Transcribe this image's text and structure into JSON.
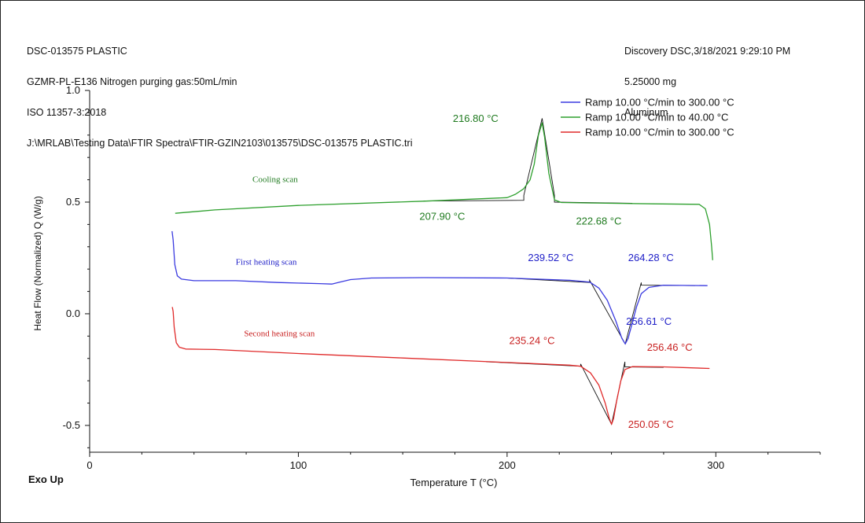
{
  "header": {
    "left_lines": [
      "DSC-013575 PLASTIC",
      "GZMR-PL-E136 Nitrogen purging gas:50mL/min",
      "ISO 11357-3:2018",
      "J:\\MRLAB\\Testing Data\\FTIR Spectra\\FTIR-GZIN2103\\013575\\DSC-013575 PLASTIC.tri"
    ],
    "right_lines": [
      "Discovery DSC,3/18/2021 9:29:10 PM",
      "5.25000 mg",
      "Aluminum"
    ]
  },
  "footer": {
    "exo_label": "Exo Up"
  },
  "chart_data": {
    "type": "line",
    "xlabel": "Temperature  T  (°C)",
    "ylabel": "Heat Flow (Normalized)  Q  (W/g)",
    "xlim": [
      0,
      350
    ],
    "ylim": [
      -0.62,
      1.0
    ],
    "x_ticks": [
      0,
      100,
      200,
      300
    ],
    "x_tick_labels": [
      "0",
      "100",
      "200",
      "300"
    ],
    "y_ticks": [
      1.0,
      0.5,
      0.0,
      -0.5
    ],
    "y_tick_labels": [
      "1.0",
      "0.5",
      "0.0",
      "-0.5"
    ],
    "grid": false,
    "legend_position": "top-right",
    "series": [
      {
        "name": "Ramp 10.00 °C/min to 300.00 °C",
        "role": "first-heating",
        "color": "#3a3ae0",
        "points": [
          [
            39.5,
            0.37
          ],
          [
            40,
            0.33
          ],
          [
            40.8,
            0.22
          ],
          [
            42,
            0.17
          ],
          [
            44,
            0.155
          ],
          [
            50,
            0.148
          ],
          [
            70,
            0.148
          ],
          [
            90,
            0.14
          ],
          [
            110,
            0.135
          ],
          [
            116,
            0.133
          ],
          [
            120,
            0.142
          ],
          [
            125,
            0.153
          ],
          [
            135,
            0.16
          ],
          [
            160,
            0.162
          ],
          [
            200,
            0.16
          ],
          [
            230,
            0.15
          ],
          [
            239.52,
            0.142
          ],
          [
            244,
            0.115
          ],
          [
            248,
            0.06
          ],
          [
            252,
            -0.03
          ],
          [
            255,
            -0.11
          ],
          [
            256.61,
            -0.135
          ],
          [
            258,
            -0.11
          ],
          [
            260,
            -0.04
          ],
          [
            262,
            0.03
          ],
          [
            264.28,
            0.09
          ],
          [
            268,
            0.118
          ],
          [
            275,
            0.128
          ],
          [
            296,
            0.126
          ]
        ]
      },
      {
        "name": "Ramp 10.00 °C/min to 40.00 °C",
        "role": "cooling",
        "color": "#2ea02e",
        "points": [
          [
            298.5,
            0.24
          ],
          [
            298,
            0.3
          ],
          [
            297,
            0.4
          ],
          [
            295,
            0.47
          ],
          [
            292,
            0.49
          ],
          [
            270,
            0.492
          ],
          [
            240,
            0.496
          ],
          [
            226,
            0.498
          ],
          [
            222.68,
            0.51
          ],
          [
            220,
            0.63
          ],
          [
            218,
            0.79
          ],
          [
            216.8,
            0.855
          ],
          [
            215,
            0.8
          ],
          [
            213,
            0.67
          ],
          [
            211,
            0.6
          ],
          [
            208,
            0.56
          ],
          [
            204,
            0.535
          ],
          [
            200,
            0.52
          ],
          [
            160,
            0.504
          ],
          [
            100,
            0.485
          ],
          [
            60,
            0.465
          ],
          [
            41,
            0.45
          ]
        ]
      },
      {
        "name": "Ramp 10.00 °C/min to 300.00 °C",
        "role": "second-heating",
        "color": "#e02a2a",
        "points": [
          [
            39.6,
            0.03
          ],
          [
            40,
            0.01
          ],
          [
            40.5,
            -0.06
          ],
          [
            41.5,
            -0.13
          ],
          [
            43,
            -0.15
          ],
          [
            46,
            -0.158
          ],
          [
            60,
            -0.16
          ],
          [
            100,
            -0.178
          ],
          [
            150,
            -0.198
          ],
          [
            200,
            -0.218
          ],
          [
            230,
            -0.23
          ],
          [
            235.24,
            -0.235
          ],
          [
            240,
            -0.265
          ],
          [
            244,
            -0.32
          ],
          [
            247,
            -0.4
          ],
          [
            249,
            -0.47
          ],
          [
            250.05,
            -0.495
          ],
          [
            251,
            -0.47
          ],
          [
            252.5,
            -0.39
          ],
          [
            254.5,
            -0.3
          ],
          [
            256.46,
            -0.25
          ],
          [
            260,
            -0.237
          ],
          [
            275,
            -0.238
          ],
          [
            297,
            -0.245
          ]
        ]
      }
    ],
    "baselines": [
      {
        "color": "#111111",
        "points": [
          [
            160,
            0.505
          ],
          [
            208,
            0.508
          ],
          [
            208,
            0.53
          ],
          [
            216.8,
            0.875
          ],
          [
            222.68,
            0.53
          ],
          [
            222.68,
            0.5
          ],
          [
            260,
            0.495
          ]
        ]
      },
      {
        "color": "#111111",
        "points": [
          [
            200,
            0.16
          ],
          [
            239.52,
            0.14
          ],
          [
            239.52,
            0.15
          ],
          [
            256.61,
            -0.135
          ],
          [
            264.28,
            0.14
          ],
          [
            264.28,
            0.128
          ],
          [
            290,
            0.126
          ]
        ]
      },
      {
        "color": "#111111",
        "points": [
          [
            190,
            -0.215
          ],
          [
            235.24,
            -0.235
          ],
          [
            235.24,
            -0.225
          ],
          [
            250.05,
            -0.495
          ],
          [
            256.46,
            -0.215
          ],
          [
            256.46,
            -0.238
          ],
          [
            275,
            -0.24
          ]
        ]
      }
    ],
    "annotations": [
      {
        "text": "216.80 °C",
        "color": "#1f7a1f",
        "x": 174,
        "y": 0.86,
        "style": "value"
      },
      {
        "text": "207.90 °C",
        "color": "#1f7a1f",
        "x": 158,
        "y": 0.42,
        "style": "value"
      },
      {
        "text": "222.68 °C",
        "color": "#1f7a1f",
        "x": 233,
        "y": 0.4,
        "style": "value"
      },
      {
        "text": "Cooling scan",
        "color": "#1f7a1f",
        "x": 78,
        "y": 0.59,
        "style": "label"
      },
      {
        "text": "239.52 °C",
        "color": "#2020c8",
        "x": 210,
        "y": 0.235,
        "style": "value"
      },
      {
        "text": "264.28 °C",
        "color": "#2020c8",
        "x": 258,
        "y": 0.235,
        "style": "value"
      },
      {
        "text": "First heating scan",
        "color": "#2020c8",
        "x": 70,
        "y": 0.22,
        "style": "label"
      },
      {
        "text": "256.61 °C",
        "color": "#2020c8",
        "x": 257,
        "y": -0.05,
        "style": "value"
      },
      {
        "text": "Second heating scan",
        "color": "#c81f1f",
        "x": 74,
        "y": -0.1,
        "style": "label"
      },
      {
        "text": "235.24 °C",
        "color": "#c81f1f",
        "x": 201,
        "y": -0.135,
        "style": "value"
      },
      {
        "text": "256.46 °C",
        "color": "#c81f1f",
        "x": 267,
        "y": -0.165,
        "style": "value"
      },
      {
        "text": "250.05 °C",
        "color": "#c81f1f",
        "x": 258,
        "y": -0.51,
        "style": "value"
      }
    ]
  }
}
